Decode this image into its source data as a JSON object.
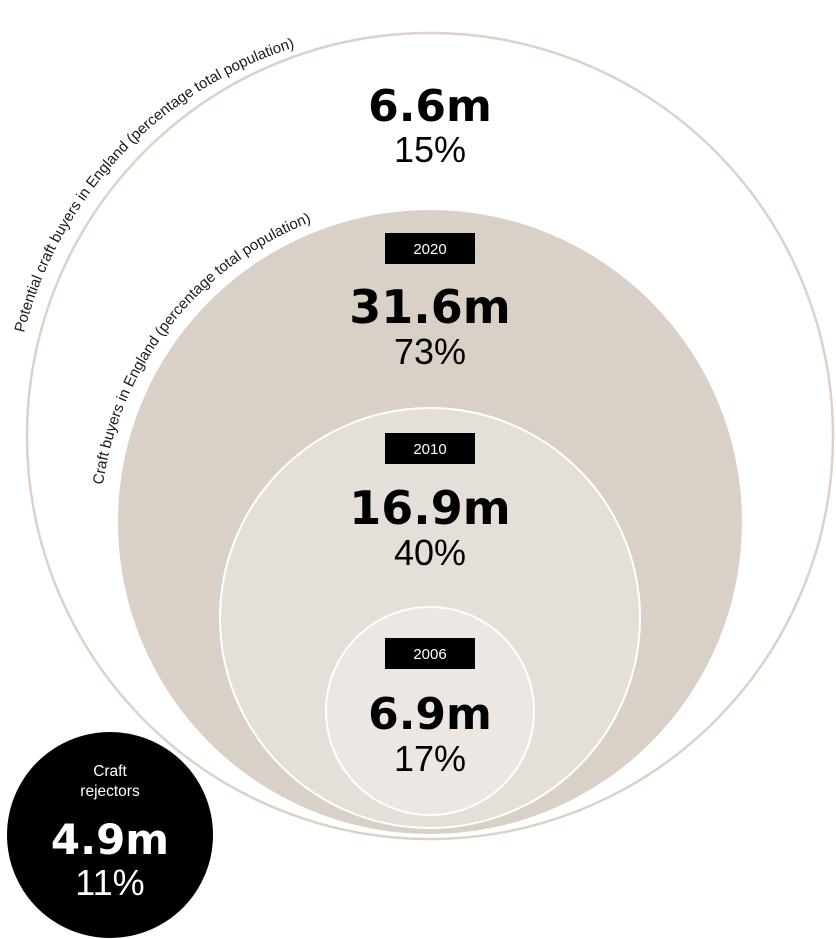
{
  "colors": {
    "background": "#ffffff",
    "outer_ring_stroke": "#dcd2c8",
    "craft_buyers_fill": "#d9d0c7",
    "circle_2010_fill": "#e5dfd9",
    "circle_2006_fill": "#ece7e2",
    "inner_stroke": "#ffffff",
    "label_box": "#000000",
    "rejectors_fill": "#000000"
  },
  "labels": {
    "potential_arc": "Potential craft buyers in England (percentage total population)",
    "buyers_arc": "Craft buyers in England (percentage total population)"
  },
  "potential": {
    "value": "6.6m",
    "percent": "15%"
  },
  "y2020": {
    "year": "2020",
    "value": "31.6m",
    "percent": "73%"
  },
  "y2010": {
    "year": "2010",
    "value": "16.9m",
    "percent": "40%"
  },
  "y2006": {
    "year": "2006",
    "value": "6.9m",
    "percent": "17%"
  },
  "rejectors": {
    "line1": "Craft",
    "line2": "rejectors",
    "value": "4.9m",
    "percent": "11%"
  }
}
